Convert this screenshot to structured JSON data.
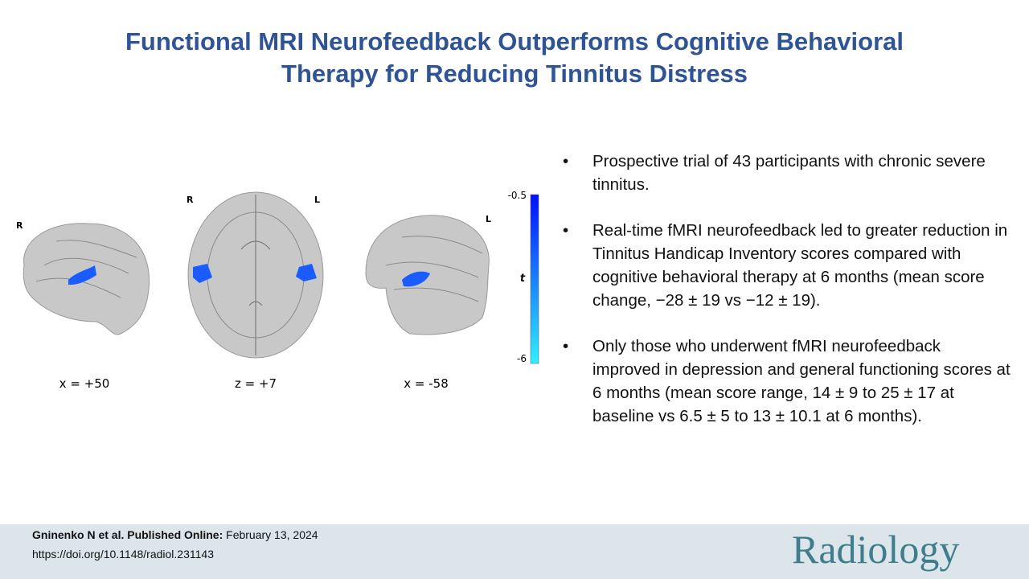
{
  "header": {
    "title": "Functional MRI Neurofeedback Outperforms Cognitive Behavioral Therapy for Reducing Tinnitus Distress"
  },
  "figure": {
    "panels": [
      {
        "orientation_labels": [
          "R"
        ],
        "caption": "x = +50"
      },
      {
        "orientation_labels": [
          "R",
          "L"
        ],
        "caption": "z = +7"
      },
      {
        "orientation_labels": [
          "L"
        ],
        "caption": "x = -58"
      }
    ],
    "colorbar": {
      "top_label": "-0.5",
      "bottom_label": "-6",
      "axis_label": "t"
    }
  },
  "bullets": [
    "Prospective trial of 43 participants with chronic severe tinnitus.",
    "Real-time fMRI neurofeedback led to greater reduction in Tinnitus Handicap Inventory scores compared with cognitive behavioral therapy at  6 months (mean score change, −28 ± 19 vs −12 ± 19).",
    "Only those who underwent fMRI neurofeedback improved in depression and general functioning scores at 6 months (mean score range, 14 ± 9 to 25 ± 17 at baseline vs 6.5 ± 5 to 13 ± 10.1 at 6 months)."
  ],
  "footer": {
    "citation": "Gninenko N et al. Published Online:",
    "date": "February 13, 2024",
    "doi": "https://doi.org/10.1148/radiol.231143",
    "logo": "Radiology"
  }
}
